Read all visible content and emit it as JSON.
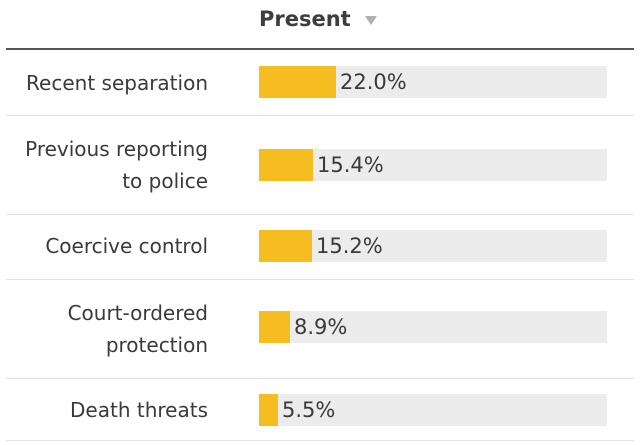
{
  "chart_data": {
    "type": "bar",
    "orientation": "horizontal",
    "column_header": "Present",
    "sort_icon": "sort-desc-icon",
    "categories": [
      [
        "Recent separation"
      ],
      [
        "Previous reporting",
        "to police"
      ],
      [
        "Coercive control"
      ],
      [
        "Court-ordered",
        "protection"
      ],
      [
        "Death threats"
      ]
    ],
    "values": [
      22.0,
      15.4,
      15.2,
      8.9,
      5.5
    ],
    "value_labels": [
      "22.0%",
      "15.4%",
      "15.2%",
      "8.9%",
      "5.5%"
    ],
    "xlim": [
      0,
      100
    ],
    "colors": {
      "bar": "#f5bd1f",
      "track": "#ececec"
    }
  }
}
